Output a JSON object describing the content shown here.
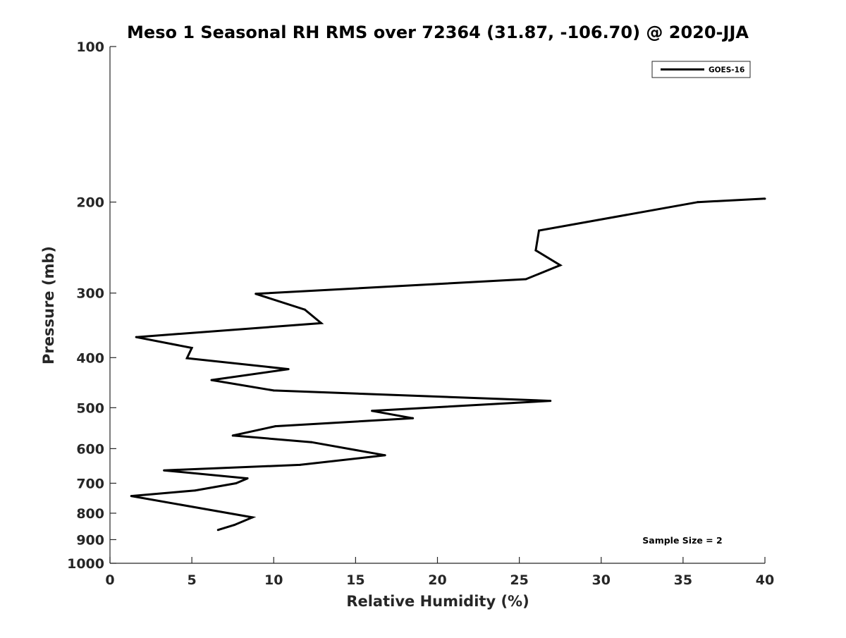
{
  "chart_data": {
    "type": "line",
    "title": "Meso 1 Seasonal RH RMS over 72364 (31.87, -106.70) @ 2020-JJA",
    "xlabel": "Relative Humidity (%)",
    "ylabel": "Pressure (mb)",
    "xlim": [
      0,
      40
    ],
    "ylim": [
      1000,
      100
    ],
    "yscale": "log",
    "y_reversed": true,
    "xticks": [
      0,
      5,
      10,
      15,
      20,
      25,
      30,
      35,
      40
    ],
    "xtick_labels": [
      "0",
      "5",
      "10",
      "15",
      "20",
      "25",
      "30",
      "35",
      "40"
    ],
    "yticks": [
      100,
      200,
      300,
      400,
      500,
      600,
      700,
      800,
      900,
      1000
    ],
    "ytick_labels": [
      "100",
      "200",
      "300",
      "400",
      "500",
      "600",
      "700",
      "800",
      "900",
      "1000"
    ],
    "grid": false,
    "legend_position": "top-right",
    "annotation": "Sample Size = 2",
    "series": [
      {
        "name": "GOES-16",
        "color": "#000000",
        "points": [
          {
            "rh": 6.6,
            "p": 862
          },
          {
            "rh": 7.6,
            "p": 843
          },
          {
            "rh": 8.7,
            "p": 815
          },
          {
            "rh": 1.3,
            "p": 741
          },
          {
            "rh": 5.2,
            "p": 723
          },
          {
            "rh": 7.7,
            "p": 700
          },
          {
            "rh": 8.4,
            "p": 685
          },
          {
            "rh": 3.3,
            "p": 661
          },
          {
            "rh": 11.6,
            "p": 645
          },
          {
            "rh": 16.8,
            "p": 618
          },
          {
            "rh": 12.3,
            "p": 583
          },
          {
            "rh": 7.5,
            "p": 566
          },
          {
            "rh": 10.1,
            "p": 543
          },
          {
            "rh": 18.5,
            "p": 524
          },
          {
            "rh": 16.0,
            "p": 507
          },
          {
            "rh": 26.9,
            "p": 485
          },
          {
            "rh": 10.0,
            "p": 463
          },
          {
            "rh": 6.2,
            "p": 442
          },
          {
            "rh": 10.9,
            "p": 421
          },
          {
            "rh": 4.7,
            "p": 401
          },
          {
            "rh": 5.0,
            "p": 383
          },
          {
            "rh": 1.6,
            "p": 365
          },
          {
            "rh": 12.9,
            "p": 343
          },
          {
            "rh": 11.9,
            "p": 323
          },
          {
            "rh": 8.9,
            "p": 301
          },
          {
            "rh": 25.4,
            "p": 282
          },
          {
            "rh": 27.5,
            "p": 265
          },
          {
            "rh": 26.0,
            "p": 248
          },
          {
            "rh": 26.2,
            "p": 227
          },
          {
            "rh": 35.9,
            "p": 200
          },
          {
            "rh": 40.0,
            "p": 197
          }
        ]
      }
    ]
  }
}
